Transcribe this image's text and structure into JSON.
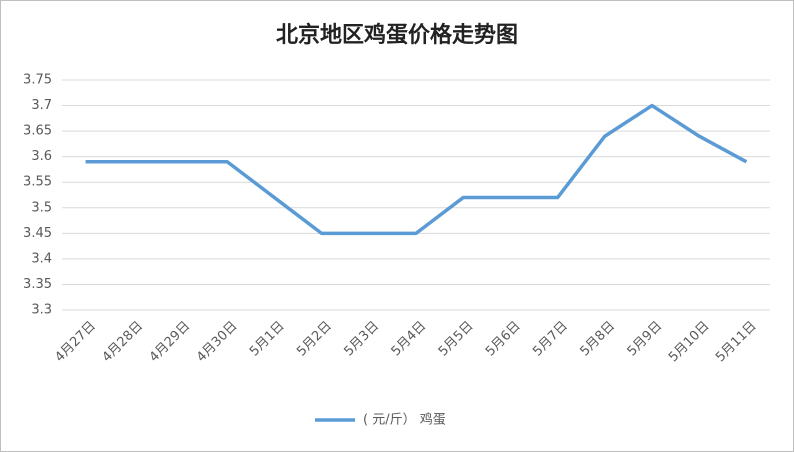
{
  "chart_data": {
    "type": "line",
    "title": "北京地区鸡蛋价格走势图",
    "categories": [
      "4月27日",
      "4月28日",
      "4月29日",
      "4月30日",
      "5月1日",
      "5月2日",
      "5月3日",
      "5月4日",
      "5月5日",
      "5月6日",
      "5月7日",
      "5月8日",
      "5月9日",
      "5月10日",
      "5月11日"
    ],
    "series": [
      {
        "name": "( 元/斤） 鸡蛋",
        "color": "#5b9bd5",
        "values": [
          3.59,
          3.59,
          3.59,
          3.59,
          3.52,
          3.45,
          3.45,
          3.45,
          3.52,
          3.52,
          3.52,
          3.64,
          3.7,
          3.64,
          3.59
        ]
      }
    ],
    "ylim": [
      3.3,
      3.75
    ],
    "yticks": [
      3.3,
      3.35,
      3.4,
      3.45,
      3.5,
      3.55,
      3.6,
      3.65,
      3.7,
      3.75
    ],
    "grid": true,
    "legend": "bottom"
  }
}
